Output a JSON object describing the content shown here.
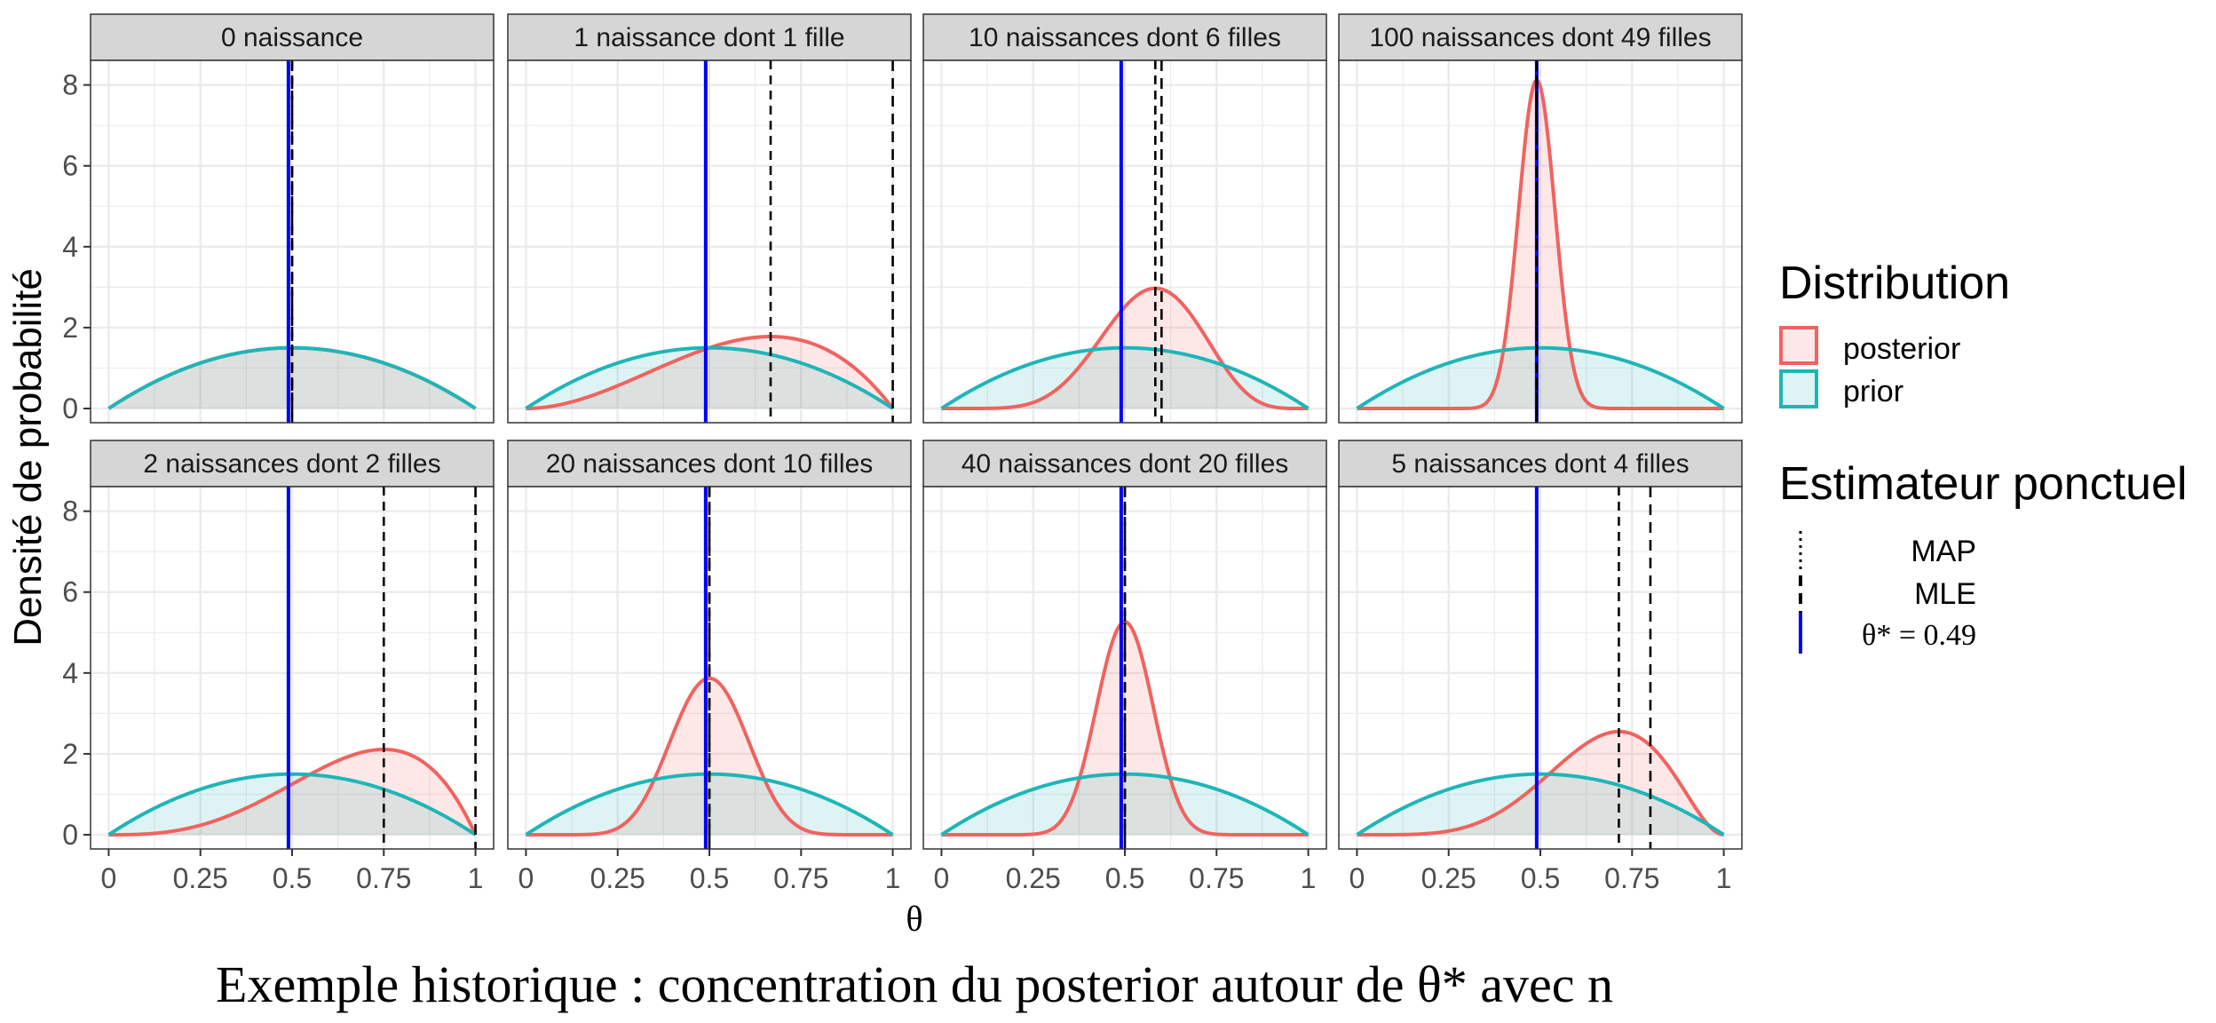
{
  "colors": {
    "posterior": "#F0635F",
    "posterior_fill": "#FCE8E8",
    "prior": "#1FB5B8",
    "prior_fill": "#DDF3F4",
    "overlap_fill": "#E1E1E3",
    "theta_star": "#0000FF",
    "strip": "#D6D6D6",
    "grid": "#EBEBEB"
  },
  "chart_data": {
    "type": "line",
    "title": "Exemple historique : concentration du posterior autour de θ* avec n",
    "xlabel": "θ",
    "ylabel": "Densité de probabilité",
    "xlim": [
      0,
      1
    ],
    "ylim": [
      0,
      8.3
    ],
    "x_ticks": [
      "0",
      "0.25",
      "0.5",
      "0.75",
      "1"
    ],
    "y_ticks": [
      "0",
      "2",
      "4",
      "6",
      "8"
    ],
    "grid": true,
    "theta_star": 0.49,
    "prior": {
      "alpha": 2,
      "beta": 2
    },
    "legend": {
      "distribution_title": "Distribution",
      "distribution_items": [
        "posterior",
        "prior"
      ],
      "estimator_title": "Estimateur ponctuel",
      "estimator_items": [
        "MAP",
        "MLE",
        "θ* = 0.49"
      ],
      "placement": "right"
    },
    "panels": [
      {
        "title": "0 naissance",
        "n": 0,
        "k": 0,
        "map": 0.5,
        "mle": 0.5,
        "posterior_peak": 1.5
      },
      {
        "title": "1 naissance dont 1 fille",
        "n": 1,
        "k": 1,
        "map": 0.667,
        "mle": 1.0,
        "posterior_peak": 1.78
      },
      {
        "title": "10 naissances dont 6 filles",
        "n": 10,
        "k": 6,
        "map": 0.583,
        "mle": 0.6,
        "posterior_peak": 2.95
      },
      {
        "title": "100 naissances dont 49 filles",
        "n": 100,
        "k": 49,
        "map": 0.49,
        "mle": 0.49,
        "posterior_peak": 8.05
      },
      {
        "title": "2 naissances dont 2 filles",
        "n": 2,
        "k": 2,
        "map": 0.75,
        "mle": 1.0,
        "posterior_peak": 2.11
      },
      {
        "title": "20 naissances dont 10 filles",
        "n": 20,
        "k": 10,
        "map": 0.5,
        "mle": 0.5,
        "posterior_peak": 3.85
      },
      {
        "title": "40 naissances dont 20 filles",
        "n": 40,
        "k": 20,
        "map": 0.5,
        "mle": 0.5,
        "posterior_peak": 5.25
      },
      {
        "title": "5 naissances dont 4 filles",
        "n": 5,
        "k": 4,
        "map": 0.714,
        "mle": 0.8,
        "posterior_peak": 2.55
      }
    ]
  }
}
